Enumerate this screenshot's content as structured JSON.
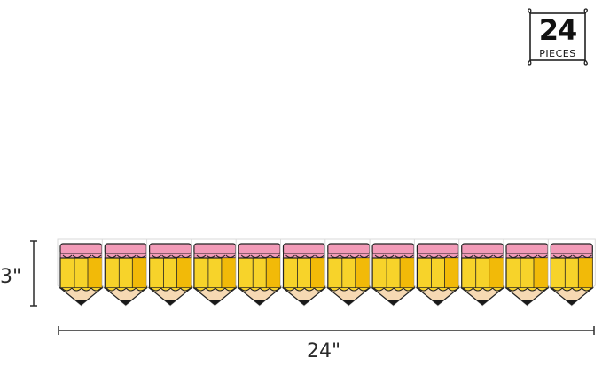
{
  "badge": {
    "count": "24",
    "label": "PIECES"
  },
  "dimensions": {
    "height": "3\"",
    "width": "24\""
  },
  "product": {
    "piece_count_shown": 12
  },
  "colors": {
    "eraser": "#f29bb8",
    "pencil_body": "#f7d32a",
    "pencil_shade": "#f0b400",
    "wood": "#f6d9b3",
    "lead": "#1a1a1a",
    "outline": "#222222"
  }
}
